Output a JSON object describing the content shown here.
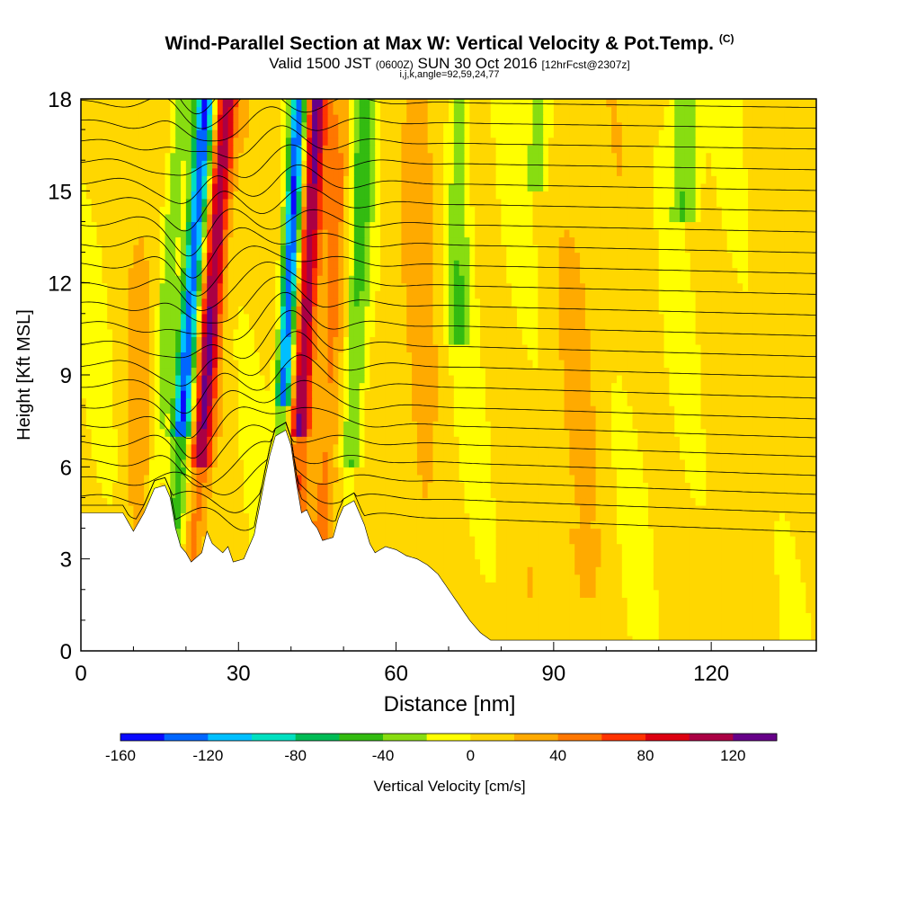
{
  "chart_data": {
    "type": "heatmap",
    "title": "Wind-Parallel Section at Max W: Vertical Velocity & Pot.Temp.",
    "title_mark": "(C)",
    "subtitle_parts": [
      "Valid 1500 JST",
      "(0600Z)",
      "SUN 30 Oct 2016",
      "[12hrFcst@2307z]"
    ],
    "subtitle2": "i,j,k,angle=92,59,24,77",
    "xlabel": "Distance [nm]",
    "ylabel": "Height [Kft MSL]",
    "xlim": [
      0,
      140
    ],
    "ylim": [
      0,
      18
    ],
    "xticks": [
      0,
      30,
      60,
      90,
      120
    ],
    "yticks": [
      0,
      3,
      6,
      9,
      12,
      15,
      18
    ],
    "colorbar": {
      "label": "Vertical Velocity [cm/s]",
      "range": [
        -160,
        140
      ],
      "step": 20,
      "ticks": [
        -160,
        -120,
        -80,
        -40,
        0,
        40,
        80,
        120
      ],
      "colors": [
        "#0a0aff",
        "#0066ff",
        "#00bfff",
        "#00e0c0",
        "#00bb55",
        "#33bb11",
        "#88dd11",
        "#ffff00",
        "#ffd700",
        "#ffaa00",
        "#ff7700",
        "#ff3300",
        "#dd0011",
        "#aa0044",
        "#660088"
      ]
    },
    "contour_label": "pot_temp"
  }
}
